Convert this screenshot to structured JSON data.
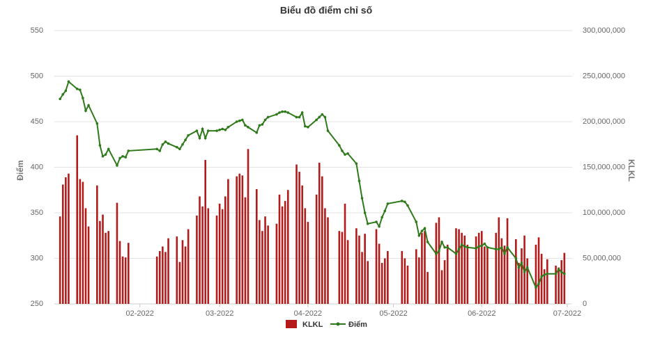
{
  "chart_data": {
    "type": "combo",
    "title": "Biểu đồ điểm chỉ số",
    "ylabel": "Điểm",
    "y2label": "KLKL",
    "x": [
      3,
      4,
      5,
      6,
      9,
      10,
      11,
      12,
      13,
      16,
      17,
      18,
      19,
      20,
      23,
      24,
      25,
      26,
      27,
      37,
      38,
      39,
      40,
      41,
      44,
      45,
      46,
      47,
      48,
      51,
      52,
      53,
      54,
      55,
      58,
      59,
      60,
      61,
      62,
      65,
      66,
      67,
      68,
      69,
      72,
      73,
      74,
      75,
      76,
      79,
      80,
      81,
      82,
      83,
      86,
      87,
      88,
      89,
      90,
      93,
      94,
      95,
      96,
      97,
      101,
      102,
      103,
      104,
      107,
      108,
      109,
      110,
      111,
      114,
      115,
      116,
      117,
      118,
      123,
      124,
      125,
      128,
      129,
      130,
      131,
      132,
      135,
      136,
      137,
      138,
      139,
      142,
      143,
      144,
      145,
      146,
      149,
      150,
      151,
      152,
      153,
      156,
      157,
      158,
      159,
      160,
      163,
      164,
      165,
      166,
      167,
      170,
      171,
      172,
      173,
      174,
      177,
      178,
      179,
      180
    ],
    "xlim": [
      1,
      182
    ],
    "xticks": [
      {
        "value": 31,
        "label": "02-2022"
      },
      {
        "value": 59,
        "label": "03-2022"
      },
      {
        "value": 90,
        "label": "04-2022"
      },
      {
        "value": 120,
        "label": "05-2022"
      },
      {
        "value": 151,
        "label": "06-2022"
      },
      {
        "value": 181,
        "label": "07-2022"
      }
    ],
    "ylim": [
      250,
      550
    ],
    "yticks": [
      250,
      300,
      350,
      400,
      450,
      500,
      550
    ],
    "y2lim": [
      0,
      300000000
    ],
    "y2ticks": [
      0,
      {
        "value": 50000000,
        "label": "50,000,000"
      },
      {
        "value": 100000000,
        "label": "100,000,000"
      },
      {
        "value": 150000000,
        "label": "150,000,000"
      },
      {
        "value": 200000000,
        "label": "200,000,000"
      },
      {
        "value": 250000000,
        "label": "250,000,000"
      },
      {
        "value": 300000000,
        "label": "300,000,000"
      }
    ],
    "grid": true,
    "legend": "bottom",
    "series": [
      {
        "name": "KLKL",
        "type": "bar",
        "axis": "y2",
        "color": "#b31b1b",
        "values": [
          96000000,
          131000000,
          139000000,
          143000000,
          185000000,
          137000000,
          134000000,
          105000000,
          85000000,
          130000000,
          91000000,
          98000000,
          78000000,
          80000000,
          111000000,
          69000000,
          52000000,
          51000000,
          67000000,
          52000000,
          58000000,
          63000000,
          57000000,
          72000000,
          74000000,
          46000000,
          70000000,
          63000000,
          82000000,
          97000000,
          118000000,
          107000000,
          158000000,
          105000000,
          97000000,
          110000000,
          104000000,
          118000000,
          137000000,
          140000000,
          143000000,
          141000000,
          117000000,
          170000000,
          126000000,
          92000000,
          80000000,
          96000000,
          86000000,
          88000000,
          120000000,
          107000000,
          113000000,
          125000000,
          153000000,
          145000000,
          130000000,
          105000000,
          90000000,
          120000000,
          155000000,
          140000000,
          105000000,
          95000000,
          80000000,
          79000000,
          110000000,
          70000000,
          83000000,
          75000000,
          57000000,
          77000000,
          47000000,
          82000000,
          66000000,
          45000000,
          50000000,
          58000000,
          58000000,
          50000000,
          42000000,
          60000000,
          51000000,
          78000000,
          80000000,
          35000000,
          89000000,
          95000000,
          37000000,
          48000000,
          65000000,
          83000000,
          82000000,
          78000000,
          75000000,
          65000000,
          74000000,
          78000000,
          80000000,
          63000000,
          61000000,
          78000000,
          95000000,
          72000000,
          64000000,
          94000000,
          71000000,
          45000000,
          61000000,
          75000000,
          50000000,
          65000000,
          73000000,
          55000000,
          38000000,
          49000000,
          42000000,
          40000000,
          48000000,
          56000000
        ]
      },
      {
        "name": "Điểm",
        "type": "line",
        "color": "#2e7a1a",
        "values": [
          475,
          480,
          484,
          494,
          486,
          485,
          476,
          462,
          468,
          448,
          424,
          412,
          414,
          420,
          402,
          410,
          412,
          411,
          418,
          420,
          418,
          425,
          428,
          426,
          422,
          420,
          425,
          430,
          435,
          440,
          432,
          442,
          432,
          440,
          440,
          441,
          442,
          441,
          444,
          450,
          451,
          452,
          446,
          444,
          438,
          446,
          447,
          452,
          455,
          458,
          460,
          461,
          461,
          460,
          455,
          455,
          460,
          445,
          444,
          452,
          455,
          458,
          455,
          440,
          424,
          418,
          414,
          415,
          404,
          385,
          366,
          350,
          338,
          340,
          335,
          345,
          352,
          360,
          363,
          362,
          358,
          340,
          325,
          330,
          333,
          318,
          305,
          308,
          318,
          312,
          312,
          305,
          310,
          315,
          313,
          312,
          311,
          313,
          314,
          316,
          312,
          310,
          310,
          312,
          305,
          312,
          300,
          290,
          295,
          285,
          290,
          268,
          272,
          280,
          282,
          283,
          283,
          288,
          285,
          283
        ]
      }
    ]
  }
}
